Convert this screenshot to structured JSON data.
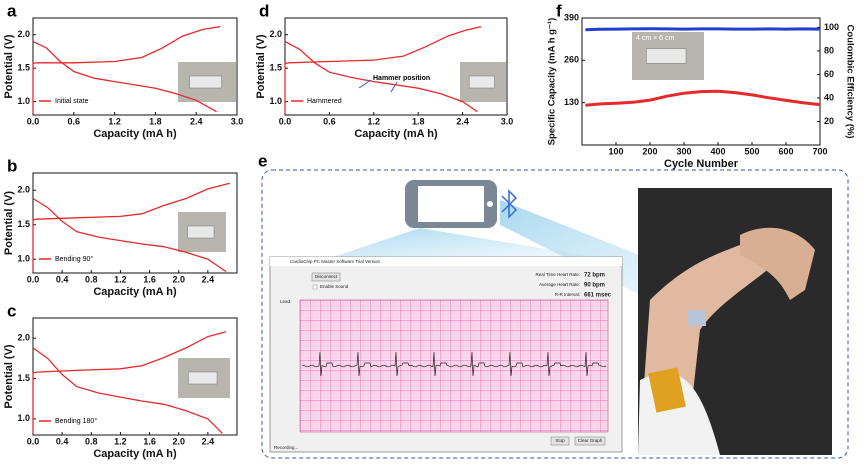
{
  "chart_data": [
    {
      "type": "line",
      "label": "a",
      "xlabel": "Capacity (mA h)",
      "ylabel": "Potential (V)",
      "xlim": [
        0,
        3
      ],
      "xticks": [
        {
          "value": 0,
          "label": "0.0"
        },
        0.6,
        1.2,
        1.8,
        2.4,
        {
          "value": 3,
          "label": "3.0"
        }
      ],
      "ylim": [
        0.8,
        2.25
      ],
      "yticks": [
        {
          "value": 1,
          "label": "1.0"
        },
        1.5,
        {
          "value": 2,
          "label": "2.0"
        }
      ],
      "series": [
        {
          "name": "Initial state",
          "color": "#e8292b",
          "x": [
            0,
            0,
            0.05,
            0.6,
            1.2,
            1.6,
            1.9,
            2.2,
            2.5,
            2.75
          ],
          "values": [
            0.82,
            1.57,
            1.58,
            1.58,
            1.6,
            1.66,
            1.8,
            1.98,
            2.08,
            2.12
          ]
        },
        {
          "color": "#e8292b",
          "x": [
            0,
            0.2,
            0.4,
            0.6,
            0.9,
            1.2,
            1.5,
            1.8,
            2.1,
            2.4,
            2.7
          ],
          "values": [
            1.9,
            1.8,
            1.6,
            1.45,
            1.35,
            1.3,
            1.25,
            1.2,
            1.12,
            1.02,
            0.85
          ]
        }
      ]
    },
    {
      "type": "line",
      "label": "b",
      "xlabel": "Capacity (mA h)",
      "ylabel": "Potential (V)",
      "xlim": [
        0,
        2.8
      ],
      "xticks": [
        {
          "value": 0,
          "label": "0.0"
        },
        0.4,
        0.8,
        1.2,
        1.6,
        {
          "value": 2,
          "label": "2.0"
        },
        2.4
      ],
      "ylim": [
        0.8,
        2.25
      ],
      "yticks": [
        {
          "value": 1,
          "label": "1.0"
        },
        1.5,
        {
          "value": 2,
          "label": "2.0"
        }
      ],
      "series": [
        {
          "name": "Bending 90°",
          "color": "#e8292b",
          "x": [
            0,
            0,
            0.05,
            0.6,
            1.2,
            1.5,
            1.8,
            2.1,
            2.4,
            2.7
          ],
          "values": [
            0.82,
            1.57,
            1.58,
            1.6,
            1.62,
            1.66,
            1.78,
            1.88,
            2.02,
            2.1
          ]
        },
        {
          "color": "#e8292b",
          "x": [
            0,
            0.2,
            0.4,
            0.6,
            0.9,
            1.2,
            1.5,
            1.8,
            2.1,
            2.4,
            2.65
          ],
          "values": [
            1.88,
            1.75,
            1.55,
            1.4,
            1.32,
            1.27,
            1.22,
            1.18,
            1.1,
            1.0,
            0.82
          ]
        }
      ]
    },
    {
      "type": "line",
      "label": "c",
      "xlabel": "Capacity (mA h)",
      "ylabel": "Potential (V)",
      "xlim": [
        0,
        2.8
      ],
      "xticks": [
        {
          "value": 0,
          "label": "0.0"
        },
        0.4,
        0.8,
        1.2,
        1.6,
        {
          "value": 2,
          "label": "2.0"
        },
        2.4
      ],
      "ylim": [
        0.8,
        2.25
      ],
      "yticks": [
        {
          "value": 1,
          "label": "1.0"
        },
        1.5,
        {
          "value": 2,
          "label": "2.0"
        }
      ],
      "series": [
        {
          "name": "Bending 180°",
          "color": "#e8292b",
          "x": [
            0,
            0,
            0.05,
            0.6,
            1.2,
            1.5,
            1.8,
            2.1,
            2.4,
            2.65
          ],
          "values": [
            0.82,
            1.57,
            1.58,
            1.6,
            1.62,
            1.66,
            1.76,
            1.88,
            2.02,
            2.08
          ]
        },
        {
          "color": "#e8292b",
          "x": [
            0,
            0.2,
            0.4,
            0.6,
            0.9,
            1.2,
            1.5,
            1.8,
            2.1,
            2.4,
            2.6
          ],
          "values": [
            1.88,
            1.75,
            1.55,
            1.4,
            1.32,
            1.27,
            1.22,
            1.18,
            1.1,
            1.0,
            0.82
          ]
        }
      ]
    },
    {
      "type": "line",
      "label": "d",
      "xlabel": "Capacity (mA h)",
      "ylabel": "Potential (V)",
      "xlim": [
        0,
        3
      ],
      "xticks": [
        {
          "value": 0,
          "label": "0.0"
        },
        0.6,
        1.2,
        1.8,
        2.4,
        {
          "value": 3,
          "label": "3.0"
        }
      ],
      "ylim": [
        0.8,
        2.25
      ],
      "yticks": [
        {
          "value": 1,
          "label": "1.0"
        },
        1.5,
        {
          "value": 2,
          "label": "2.0"
        }
      ],
      "annotation": "Hammer position",
      "series": [
        {
          "name": "Hammered",
          "color": "#e8292b",
          "x": [
            0,
            0,
            0.05,
            0.6,
            1.2,
            1.6,
            1.9,
            2.2,
            2.45,
            2.65
          ],
          "values": [
            0.82,
            1.57,
            1.58,
            1.6,
            1.62,
            1.68,
            1.82,
            1.98,
            2.07,
            2.12
          ]
        },
        {
          "color": "#e8292b",
          "x": [
            0,
            0.2,
            0.4,
            0.6,
            0.9,
            1.2,
            1.5,
            1.8,
            2.1,
            2.4,
            2.6
          ],
          "values": [
            1.9,
            1.78,
            1.58,
            1.44,
            1.36,
            1.3,
            1.25,
            1.2,
            1.12,
            1.0,
            0.85
          ]
        }
      ]
    },
    {
      "type": "line",
      "label": "f",
      "xlabel": "Cycle Number",
      "ylabel": "Specific Capacity (mA h g⁻¹)",
      "y2label": "Coulombic Efficiency (%)",
      "inset_text": "4 cm × 6 cm",
      "xlim": [
        0,
        700
      ],
      "xticks": [
        100,
        200,
        300,
        400,
        500,
        600,
        700
      ],
      "ylim": [
        0,
        390
      ],
      "yticks": [
        130,
        260,
        390
      ],
      "y2lim": [
        0,
        108
      ],
      "y2ticks": [
        20,
        40,
        60,
        80,
        100
      ],
      "x": [
        10,
        50,
        100,
        150,
        200,
        250,
        300,
        350,
        400,
        450,
        500,
        550,
        600,
        650,
        700
      ],
      "series": [
        {
          "color": "#e8292b",
          "values": [
            122,
            126,
            128,
            131,
            138,
            150,
            159,
            164,
            165,
            161,
            154,
            145,
            137,
            130,
            124
          ]
        },
        {
          "color": "#1f3fd0",
          "axis": "y2",
          "values": [
            98,
            98.5,
            98.6,
            98.7,
            98.8,
            98.7,
            98.6,
            98.7,
            98.7,
            98.6,
            98.6,
            98.7,
            98.6,
            98.7,
            98.6
          ]
        }
      ]
    }
  ],
  "panel_e": {
    "label": "e"
  },
  "ecg_window": {
    "title": "CardioChip PC Master Software Trial Version",
    "disconnect": "Disconnect",
    "enable_sound": "Enable Sound",
    "real_time_label": "Real Time Heart Rate:",
    "real_time_value": "72 bpm",
    "average_label": "Average Heart Rate:",
    "average_value": "90 bpm",
    "rr_label": "R-R Interval:",
    "rr_value": "661 msec",
    "lead": "Lead",
    "stop": "Stop",
    "clear": "Clear Graph",
    "status": "Recording..."
  }
}
